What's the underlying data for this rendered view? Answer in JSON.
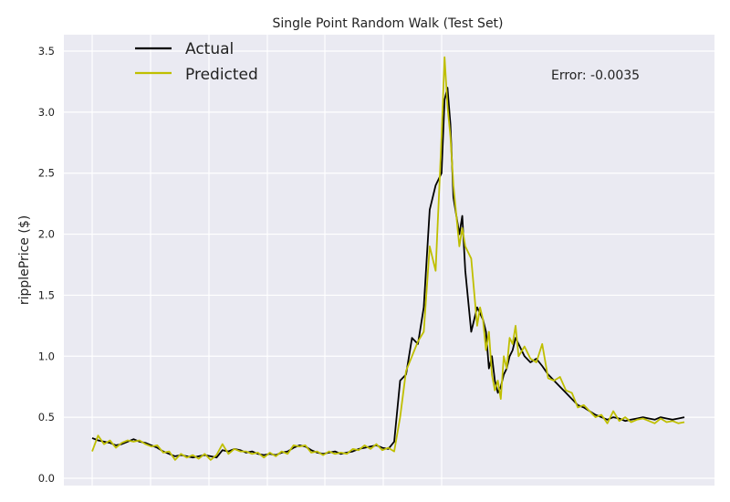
{
  "chart_data": {
    "type": "line",
    "title": "Single Point Random Walk (Test Set)",
    "xlabel": "",
    "ylabel": "ripplePrice ($)",
    "ylim": [
      0,
      3.5
    ],
    "yticks": [
      "0.0",
      "0.5",
      "1.0",
      "1.5",
      "2.0",
      "2.5",
      "3.0",
      "3.5"
    ],
    "xlim": [
      0,
      1
    ],
    "grid": true,
    "legend": "top-left",
    "annotation": "Error: -0.0035",
    "series": [
      {
        "name": "Actual",
        "color": "#000000",
        "x": [
          0,
          0.01,
          0.02,
          0.03,
          0.04,
          0.05,
          0.06,
          0.07,
          0.08,
          0.09,
          0.1,
          0.11,
          0.12,
          0.13,
          0.14,
          0.15,
          0.16,
          0.17,
          0.18,
          0.19,
          0.2,
          0.21,
          0.22,
          0.23,
          0.24,
          0.25,
          0.26,
          0.27,
          0.28,
          0.29,
          0.3,
          0.31,
          0.32,
          0.33,
          0.34,
          0.35,
          0.36,
          0.37,
          0.38,
          0.39,
          0.4,
          0.41,
          0.42,
          0.43,
          0.44,
          0.45,
          0.46,
          0.47,
          0.48,
          0.49,
          0.5,
          0.51,
          0.52,
          0.53,
          0.54,
          0.55,
          0.56,
          0.57,
          0.58,
          0.59,
          0.595,
          0.6,
          0.605,
          0.61,
          0.62,
          0.625,
          0.63,
          0.64,
          0.65,
          0.655,
          0.66,
          0.665,
          0.67,
          0.675,
          0.68,
          0.685,
          0.69,
          0.695,
          0.7,
          0.705,
          0.71,
          0.715,
          0.72,
          0.73,
          0.74,
          0.75,
          0.76,
          0.77,
          0.78,
          0.79,
          0.8,
          0.81,
          0.82,
          0.83,
          0.84,
          0.85,
          0.86,
          0.87,
          0.88,
          0.89,
          0.9,
          0.91,
          0.92,
          0.93,
          0.94,
          0.95,
          0.96,
          0.97,
          0.98,
          0.99,
          1.0
        ],
        "y": [
          0.33,
          0.31,
          0.3,
          0.29,
          0.27,
          0.28,
          0.3,
          0.32,
          0.3,
          0.29,
          0.27,
          0.25,
          0.22,
          0.2,
          0.18,
          0.19,
          0.18,
          0.17,
          0.18,
          0.19,
          0.18,
          0.17,
          0.23,
          0.22,
          0.24,
          0.23,
          0.21,
          0.22,
          0.2,
          0.19,
          0.2,
          0.19,
          0.21,
          0.22,
          0.25,
          0.27,
          0.26,
          0.23,
          0.21,
          0.2,
          0.21,
          0.22,
          0.2,
          0.21,
          0.22,
          0.24,
          0.25,
          0.26,
          0.27,
          0.25,
          0.24,
          0.3,
          0.8,
          0.85,
          1.15,
          1.1,
          1.4,
          2.2,
          2.4,
          2.5,
          3.1,
          3.2,
          2.9,
          2.3,
          2.0,
          2.15,
          1.7,
          1.2,
          1.4,
          1.35,
          1.3,
          1.2,
          0.9,
          1.0,
          0.8,
          0.7,
          0.75,
          0.85,
          0.9,
          1.0,
          1.05,
          1.15,
          1.1,
          1.0,
          0.95,
          0.98,
          0.92,
          0.85,
          0.8,
          0.75,
          0.7,
          0.65,
          0.6,
          0.58,
          0.55,
          0.52,
          0.5,
          0.48,
          0.5,
          0.49,
          0.47,
          0.48,
          0.49,
          0.5,
          0.49,
          0.48,
          0.5,
          0.49,
          0.48,
          0.49,
          0.5
        ]
      },
      {
        "name": "Predicted",
        "color": "#bfbf00",
        "x": [
          0,
          0.01,
          0.02,
          0.03,
          0.04,
          0.05,
          0.06,
          0.07,
          0.08,
          0.09,
          0.1,
          0.11,
          0.12,
          0.13,
          0.14,
          0.15,
          0.16,
          0.17,
          0.18,
          0.19,
          0.2,
          0.21,
          0.22,
          0.23,
          0.24,
          0.25,
          0.26,
          0.27,
          0.28,
          0.29,
          0.3,
          0.31,
          0.32,
          0.33,
          0.34,
          0.35,
          0.36,
          0.37,
          0.38,
          0.39,
          0.4,
          0.41,
          0.42,
          0.43,
          0.44,
          0.45,
          0.46,
          0.47,
          0.48,
          0.49,
          0.5,
          0.51,
          0.52,
          0.53,
          0.54,
          0.55,
          0.56,
          0.57,
          0.58,
          0.59,
          0.595,
          0.6,
          0.605,
          0.61,
          0.62,
          0.625,
          0.63,
          0.64,
          0.65,
          0.655,
          0.66,
          0.665,
          0.67,
          0.675,
          0.68,
          0.685,
          0.69,
          0.695,
          0.7,
          0.705,
          0.71,
          0.715,
          0.72,
          0.73,
          0.74,
          0.75,
          0.76,
          0.77,
          0.78,
          0.79,
          0.8,
          0.81,
          0.82,
          0.83,
          0.84,
          0.85,
          0.86,
          0.87,
          0.88,
          0.89,
          0.9,
          0.91,
          0.92,
          0.93,
          0.94,
          0.95,
          0.96,
          0.97,
          0.98,
          0.99,
          1.0
        ],
        "y": [
          0.22,
          0.35,
          0.28,
          0.31,
          0.25,
          0.29,
          0.31,
          0.3,
          0.31,
          0.28,
          0.26,
          0.27,
          0.21,
          0.22,
          0.15,
          0.2,
          0.17,
          0.19,
          0.16,
          0.2,
          0.15,
          0.19,
          0.28,
          0.2,
          0.24,
          0.22,
          0.22,
          0.2,
          0.21,
          0.17,
          0.21,
          0.18,
          0.22,
          0.2,
          0.27,
          0.26,
          0.27,
          0.21,
          0.22,
          0.19,
          0.22,
          0.2,
          0.21,
          0.2,
          0.24,
          0.23,
          0.27,
          0.24,
          0.28,
          0.23,
          0.25,
          0.22,
          0.5,
          0.88,
          1.0,
          1.12,
          1.2,
          1.9,
          1.7,
          2.8,
          3.45,
          3.05,
          2.8,
          2.4,
          1.9,
          2.05,
          1.9,
          1.8,
          1.25,
          1.4,
          1.3,
          1.05,
          1.2,
          0.85,
          0.72,
          0.8,
          0.65,
          1.0,
          0.9,
          1.15,
          1.1,
          1.25,
          1.0,
          1.08,
          0.98,
          0.95,
          1.1,
          0.82,
          0.8,
          0.83,
          0.72,
          0.7,
          0.58,
          0.6,
          0.55,
          0.5,
          0.52,
          0.45,
          0.55,
          0.47,
          0.5,
          0.46,
          0.48,
          0.49,
          0.47,
          0.45,
          0.49,
          0.46,
          0.47,
          0.45,
          0.46
        ]
      }
    ]
  }
}
